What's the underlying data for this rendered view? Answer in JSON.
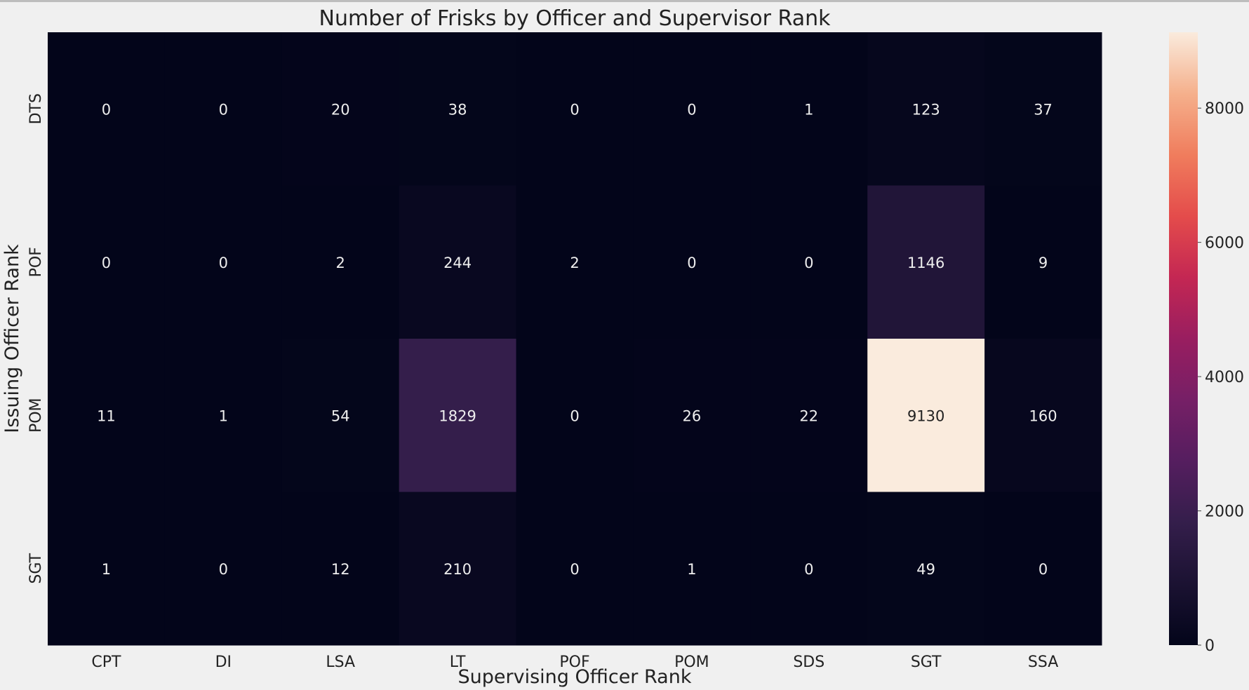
{
  "chart_data": {
    "type": "heatmap",
    "title": "Number of Frisks by Officer and Supervisor Rank",
    "xlabel": "Supervising Officer Rank",
    "ylabel": "Issuing Officer Rank",
    "x_categories": [
      "CPT",
      "DI",
      "LSA",
      "LT",
      "POF",
      "POM",
      "SDS",
      "SGT",
      "SSA"
    ],
    "y_categories": [
      "DTS",
      "POF",
      "POM",
      "SGT"
    ],
    "values": [
      [
        0,
        0,
        20,
        38,
        0,
        0,
        1,
        123,
        37
      ],
      [
        0,
        0,
        2,
        244,
        2,
        0,
        0,
        1146,
        9
      ],
      [
        11,
        1,
        54,
        1829,
        0,
        26,
        22,
        9130,
        160
      ],
      [
        1,
        0,
        12,
        210,
        0,
        1,
        0,
        49,
        0
      ]
    ],
    "colorbar": {
      "range": [
        0,
        9130
      ],
      "ticks": [
        0,
        2000,
        4000,
        6000,
        8000
      ],
      "colormap": "rocket",
      "low_color": "#03051a",
      "high_color": "#faebdd"
    },
    "grid": false
  }
}
